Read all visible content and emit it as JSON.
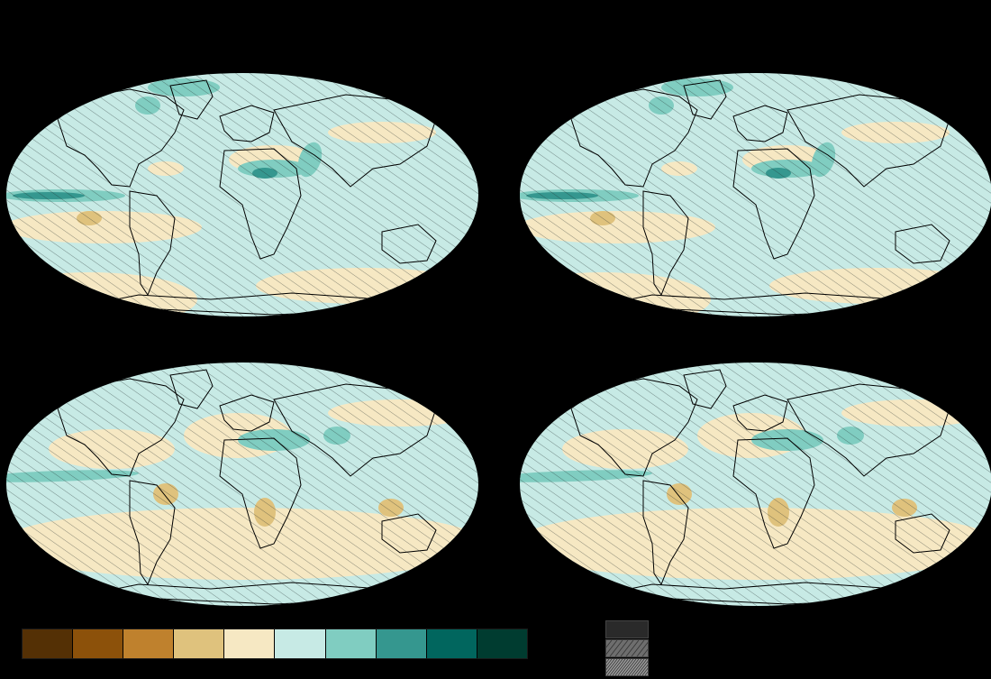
{
  "colors": {
    "background": "#000000",
    "land_outline": "#000000",
    "hatch": "#1f2a2a"
  },
  "maps": [
    {
      "id": "top-left"
    },
    {
      "id": "top-right"
    },
    {
      "id": "bottom-left"
    },
    {
      "id": "bottom-right"
    }
  ],
  "colorbar": {
    "colors": [
      "#543005",
      "#8c510a",
      "#bf812d",
      "#dfc27d",
      "#f6e8c3",
      "#c7eae5",
      "#80cdc1",
      "#35978f",
      "#01665e",
      "#003c30"
    ]
  },
  "hatch_key": {
    "icons": [
      "hatch-none-icon",
      "hatch-light-icon",
      "hatch-dense-icon"
    ],
    "fills": [
      "#2a2a2a",
      "#6e6e6e",
      "#9a9a9a"
    ]
  }
}
